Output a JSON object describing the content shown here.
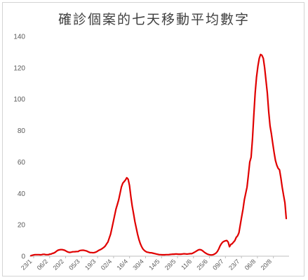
{
  "chart_data": {
    "type": "line",
    "title": "確診個案的七天移動平均數字",
    "xlabel": "",
    "ylabel": "",
    "ylim": [
      0,
      140
    ],
    "yticks": [
      0,
      20,
      40,
      60,
      80,
      100,
      120,
      140
    ],
    "grid": false,
    "legend": "none",
    "line_color": "#e00000",
    "xtick_labels": [
      "23/1",
      "06/2",
      "20/2",
      "05/3",
      "19/3",
      "02/4",
      "16/4",
      "30/4",
      "14/5",
      "28/5",
      "11/6",
      "25/6",
      "09/7",
      "23/7",
      "06/8",
      "20/8"
    ],
    "series": [
      {
        "values": [
          0.3,
          0.6,
          0.8,
          1.0,
          1.0,
          1.0,
          1.0,
          0.9,
          1.0,
          1.2,
          1.2,
          1.0,
          1.0,
          1.0,
          1.3,
          1.4,
          1.8,
          2.0,
          2.5,
          3.2,
          3.8,
          4.0,
          4.2,
          4.2,
          4.0,
          3.8,
          3.3,
          2.8,
          2.5,
          2.4,
          2.6,
          2.8,
          2.8,
          2.9,
          3.0,
          3.0,
          3.5,
          3.7,
          3.8,
          3.8,
          3.6,
          3.4,
          3.0,
          2.6,
          2.3,
          2.3,
          2.2,
          2.3,
          2.6,
          3.0,
          3.6,
          4.0,
          4.4,
          5.0,
          5.6,
          6.4,
          7.8,
          9.0,
          11.5,
          14.0,
          18.0,
          22.0,
          26.0,
          30.0,
          33.0,
          36.0,
          40.0,
          44.0,
          46.5,
          47.5,
          48.5,
          50.0,
          49.0,
          45.0,
          38.0,
          32.0,
          27.0,
          22.0,
          18.0,
          14.0,
          10.5,
          8.0,
          6.0,
          4.5,
          3.6,
          3.0,
          2.6,
          2.4,
          2.2,
          2.2,
          2.0,
          1.8,
          1.6,
          1.4,
          1.2,
          1.0,
          1.0,
          0.9,
          0.9,
          0.9,
          1.0,
          1.0,
          1.0,
          1.1,
          1.2,
          1.3,
          1.3,
          1.4,
          1.4,
          1.3,
          1.3,
          1.3,
          1.4,
          1.5,
          1.5,
          1.4,
          1.4,
          1.5,
          1.6,
          1.6,
          2.0,
          2.5,
          3.0,
          3.5,
          4.0,
          4.2,
          4.0,
          3.5,
          2.8,
          2.2,
          1.6,
          1.2,
          1.0,
          0.8,
          0.8,
          1.0,
          1.4,
          2.0,
          3.0,
          4.5,
          6.5,
          8.0,
          9.0,
          9.5,
          9.8,
          10.0,
          9.0,
          6.0,
          7.5,
          8.0,
          9.0,
          10.0,
          12.0,
          13.0,
          15.0,
          20.0,
          25.0,
          30.0,
          36.0,
          40.0,
          44.0,
          52.0,
          60.0,
          63.0,
          75.0,
          90.0,
          104.0,
          114.0,
          121.0,
          126.0,
          128.5,
          128.0,
          126.0,
          120.0,
          112.0,
          104.0,
          92.0,
          83.0,
          78.0,
          72.0,
          66.0,
          61.0,
          58.0,
          56.0,
          55.0,
          50.0,
          44.0,
          39.0,
          34.0,
          24.0
        ]
      }
    ]
  }
}
